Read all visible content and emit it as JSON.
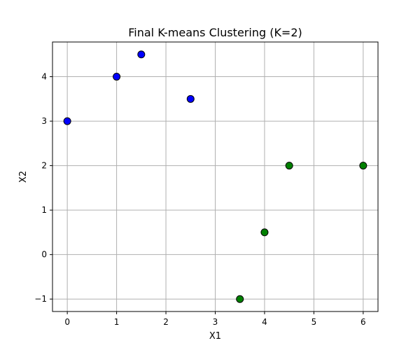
{
  "chart_data": {
    "type": "scatter",
    "title": "Final K-means Clustering (K=2)",
    "xlabel": "X1",
    "ylabel": "X2",
    "xlim": [
      -0.3,
      6.3
    ],
    "ylim": [
      -1.28,
      4.78
    ],
    "x_ticks": [
      0,
      1,
      2,
      3,
      4,
      5,
      6
    ],
    "y_ticks": [
      -1,
      0,
      1,
      2,
      3,
      4
    ],
    "x_tick_labels": [
      "0",
      "1",
      "2",
      "3",
      "4",
      "5",
      "6"
    ],
    "y_tick_labels": [
      "−1",
      "0",
      "1",
      "2",
      "3",
      "4"
    ],
    "grid": true,
    "series": [
      {
        "color": "#0000ff",
        "points": [
          {
            "x": 0,
            "y": 3
          },
          {
            "x": 1,
            "y": 4
          },
          {
            "x": 1.5,
            "y": 4.5
          },
          {
            "x": 2.5,
            "y": 3.5
          }
        ]
      },
      {
        "color": "#008000",
        "points": [
          {
            "x": 3.5,
            "y": -1
          },
          {
            "x": 4,
            "y": 0.5
          },
          {
            "x": 4.5,
            "y": 2
          },
          {
            "x": 6,
            "y": 2
          }
        ]
      }
    ]
  }
}
